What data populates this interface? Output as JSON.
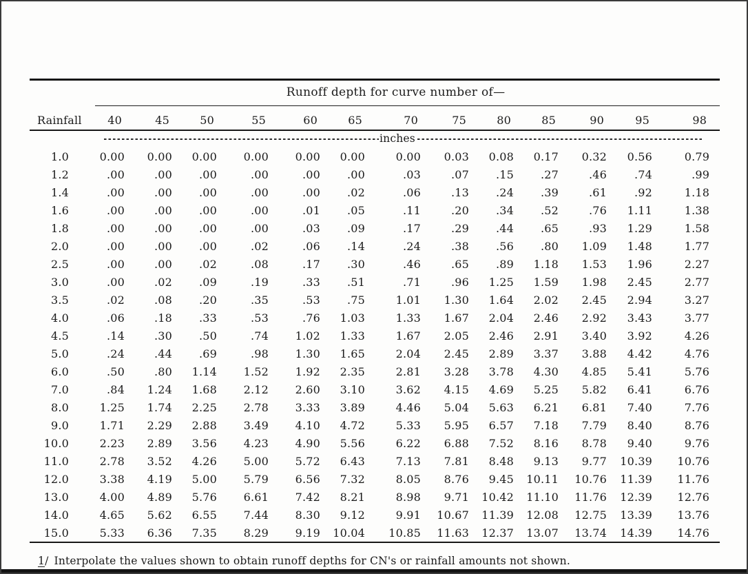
{
  "table": {
    "spanner_title": "Runoff depth for curve number of—",
    "rainfall_header": "Rainfall",
    "cn_headers": [
      "40",
      "45",
      "50",
      "55",
      "60",
      "65",
      "70",
      "75",
      "80",
      "85",
      "90",
      "95",
      "98"
    ],
    "units_label": "inches",
    "rows": [
      {
        "rainfall": "1.0",
        "values": [
          "0.00",
          "0.00",
          "0.00",
          "0.00",
          "0.00",
          "0.00",
          "0.00",
          "0.03",
          "0.08",
          "0.17",
          "0.32",
          "0.56",
          "0.79"
        ]
      },
      {
        "rainfall": "1.2",
        "values": [
          ".00",
          ".00",
          ".00",
          ".00",
          ".00",
          ".00",
          ".03",
          ".07",
          ".15",
          ".27",
          ".46",
          ".74",
          ".99"
        ]
      },
      {
        "rainfall": "1.4",
        "values": [
          ".00",
          ".00",
          ".00",
          ".00",
          ".00",
          ".02",
          ".06",
          ".13",
          ".24",
          ".39",
          ".61",
          ".92",
          "1.18"
        ]
      },
      {
        "rainfall": "1.6",
        "values": [
          ".00",
          ".00",
          ".00",
          ".00",
          ".01",
          ".05",
          ".11",
          ".20",
          ".34",
          ".52",
          ".76",
          "1.11",
          "1.38"
        ]
      },
      {
        "rainfall": "1.8",
        "values": [
          ".00",
          ".00",
          ".00",
          ".00",
          ".03",
          ".09",
          ".17",
          ".29",
          ".44",
          ".65",
          ".93",
          "1.29",
          "1.58"
        ]
      },
      {
        "rainfall": "2.0",
        "values": [
          ".00",
          ".00",
          ".00",
          ".02",
          ".06",
          ".14",
          ".24",
          ".38",
          ".56",
          ".80",
          "1.09",
          "1.48",
          "1.77"
        ]
      },
      {
        "rainfall": "2.5",
        "values": [
          ".00",
          ".00",
          ".02",
          ".08",
          ".17",
          ".30",
          ".46",
          ".65",
          ".89",
          "1.18",
          "1.53",
          "1.96",
          "2.27"
        ]
      },
      {
        "rainfall": "3.0",
        "values": [
          ".00",
          ".02",
          ".09",
          ".19",
          ".33",
          ".51",
          ".71",
          ".96",
          "1.25",
          "1.59",
          "1.98",
          "2.45",
          "2.77"
        ]
      },
      {
        "rainfall": "3.5",
        "values": [
          ".02",
          ".08",
          ".20",
          ".35",
          ".53",
          ".75",
          "1.01",
          "1.30",
          "1.64",
          "2.02",
          "2.45",
          "2.94",
          "3.27"
        ]
      },
      {
        "rainfall": "4.0",
        "values": [
          ".06",
          ".18",
          ".33",
          ".53",
          ".76",
          "1.03",
          "1.33",
          "1.67",
          "2.04",
          "2.46",
          "2.92",
          "3.43",
          "3.77"
        ]
      },
      {
        "rainfall": "4.5",
        "values": [
          ".14",
          ".30",
          ".50",
          ".74",
          "1.02",
          "1.33",
          "1.67",
          "2.05",
          "2.46",
          "2.91",
          "3.40",
          "3.92",
          "4.26"
        ]
      },
      {
        "rainfall": "5.0",
        "values": [
          ".24",
          ".44",
          ".69",
          ".98",
          "1.30",
          "1.65",
          "2.04",
          "2.45",
          "2.89",
          "3.37",
          "3.88",
          "4.42",
          "4.76"
        ]
      },
      {
        "rainfall": "6.0",
        "values": [
          ".50",
          ".80",
          "1.14",
          "1.52",
          "1.92",
          "2.35",
          "2.81",
          "3.28",
          "3.78",
          "4.30",
          "4.85",
          "5.41",
          "5.76"
        ]
      },
      {
        "rainfall": "7.0",
        "values": [
          ".84",
          "1.24",
          "1.68",
          "2.12",
          "2.60",
          "3.10",
          "3.62",
          "4.15",
          "4.69",
          "5.25",
          "5.82",
          "6.41",
          "6.76"
        ]
      },
      {
        "rainfall": "8.0",
        "values": [
          "1.25",
          "1.74",
          "2.25",
          "2.78",
          "3.33",
          "3.89",
          "4.46",
          "5.04",
          "5.63",
          "6.21",
          "6.81",
          "7.40",
          "7.76"
        ]
      },
      {
        "rainfall": "9.0",
        "values": [
          "1.71",
          "2.29",
          "2.88",
          "3.49",
          "4.10",
          "4.72",
          "5.33",
          "5.95",
          "6.57",
          "7.18",
          "7.79",
          "8.40",
          "8.76"
        ]
      },
      {
        "rainfall": "10.0",
        "values": [
          "2.23",
          "2.89",
          "3.56",
          "4.23",
          "4.90",
          "5.56",
          "6.22",
          "6.88",
          "7.52",
          "8.16",
          "8.78",
          "9.40",
          "9.76"
        ]
      },
      {
        "rainfall": "11.0",
        "values": [
          "2.78",
          "3.52",
          "4.26",
          "5.00",
          "5.72",
          "6.43",
          "7.13",
          "7.81",
          "8.48",
          "9.13",
          "9.77",
          "10.39",
          "10.76"
        ]
      },
      {
        "rainfall": "12.0",
        "values": [
          "3.38",
          "4.19",
          "5.00",
          "5.79",
          "6.56",
          "7.32",
          "8.05",
          "8.76",
          "9.45",
          "10.11",
          "10.76",
          "11.39",
          "11.76"
        ]
      },
      {
        "rainfall": "13.0",
        "values": [
          "4.00",
          "4.89",
          "5.76",
          "6.61",
          "7.42",
          "8.21",
          "8.98",
          "9.71",
          "10.42",
          "11.10",
          "11.76",
          "12.39",
          "12.76"
        ]
      },
      {
        "rainfall": "14.0",
        "values": [
          "4.65",
          "5.62",
          "6.55",
          "7.44",
          "8.30",
          "9.12",
          "9.91",
          "10.67",
          "11.39",
          "12.08",
          "12.75",
          "13.39",
          "13.76"
        ]
      },
      {
        "rainfall": "15.0",
        "values": [
          "5.33",
          "6.36",
          "7.35",
          "8.29",
          "9.19",
          "10.04",
          "10.85",
          "11.63",
          "12.37",
          "13.07",
          "13.74",
          "14.39",
          "14.76"
        ]
      }
    ]
  },
  "footnote": {
    "marker_number": "1",
    "marker_slash": "/",
    "text": "Interpolate the values shown to obtain runoff depths for CN's or rainfall amounts not shown."
  }
}
